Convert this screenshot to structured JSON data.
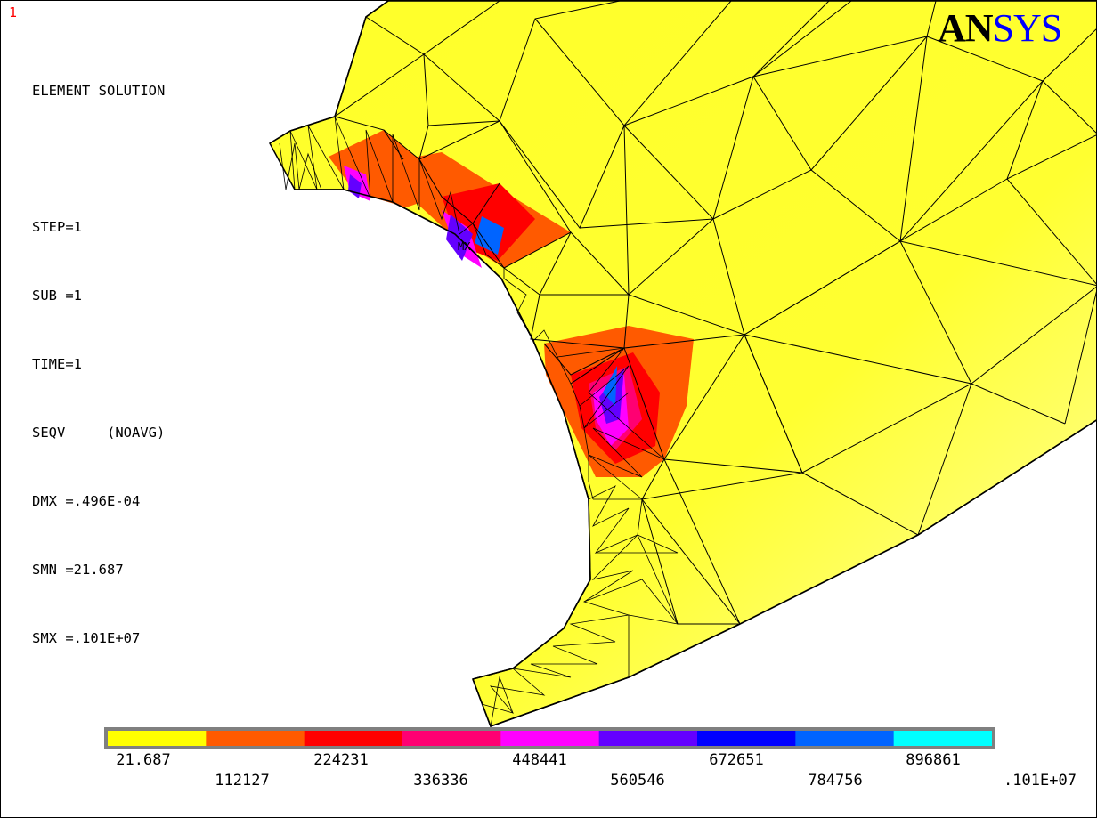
{
  "window_number": "1",
  "info": {
    "title": "ELEMENT SOLUTION",
    "lines": [
      "STEP=1",
      "SUB =1",
      "TIME=1",
      "SEQV     (NOAVG)",
      "DMX =.496E-04",
      "SMN =21.687",
      "SMX =.101E+07"
    ]
  },
  "logo": {
    "part1": "AN",
    "part2": "SYS",
    "accent_color": "#0000ff"
  },
  "max_marker": "MX",
  "legend": {
    "colors": [
      "#ffff00",
      "#ff5a00",
      "#ff0000",
      "#ff0072",
      "#ff00ff",
      "#6400ff",
      "#0000ff",
      "#0064ff",
      "#00ffff"
    ],
    "labels_top": [
      "21.687",
      "224231",
      "448441",
      "672651",
      "896861"
    ],
    "labels_bottom": [
      "112127",
      "336336",
      "560546",
      "784756",
      ".101E+07"
    ]
  },
  "colors": {
    "model_fill": "#ffff33",
    "edge": "#000000",
    "background": "#ffffff"
  }
}
